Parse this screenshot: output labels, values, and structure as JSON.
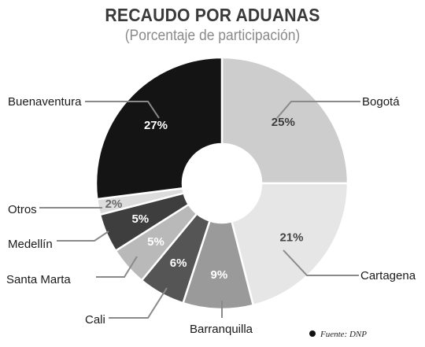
{
  "title": "RECAUDO POR ADUANAS",
  "subtitle": "(Porcentaje de participación)",
  "source": "Fuente: DNP",
  "chart_data": {
    "type": "pie",
    "style": "donut",
    "title": "RECAUDO POR ADUANAS",
    "subtitle": "(Porcentaje de participación)",
    "unit": "%",
    "slices": [
      {
        "label": "Bogotá",
        "value": 25,
        "value_label": "25%",
        "color": "#cdcdcd",
        "text_color": "#3c3c3c"
      },
      {
        "label": "Cartagena",
        "value": 21,
        "value_label": "21%",
        "color": "#e6e6e6",
        "text_color": "#444444"
      },
      {
        "label": "Barranquilla",
        "value": 9,
        "value_label": "9%",
        "color": "#9a9a9a",
        "text_color": "#ffffff"
      },
      {
        "label": "Cali",
        "value": 6,
        "value_label": "6%",
        "color": "#555555",
        "text_color": "#ffffff"
      },
      {
        "label": "Santa Marta",
        "value": 5,
        "value_label": "5%",
        "color": "#b9b9b9",
        "text_color": "#ffffff"
      },
      {
        "label": "Medellín",
        "value": 5,
        "value_label": "5%",
        "color": "#3e3e3e",
        "text_color": "#ffffff"
      },
      {
        "label": "Otros",
        "value": 2,
        "value_label": "2%",
        "color": "#dcdcdc",
        "text_color": "#6a6a6a"
      },
      {
        "label": "Buenaventura",
        "value": 27,
        "value_label": "27%",
        "color": "#141414",
        "text_color": "#ffffff"
      }
    ],
    "leader_color": "#8a8a8a"
  }
}
